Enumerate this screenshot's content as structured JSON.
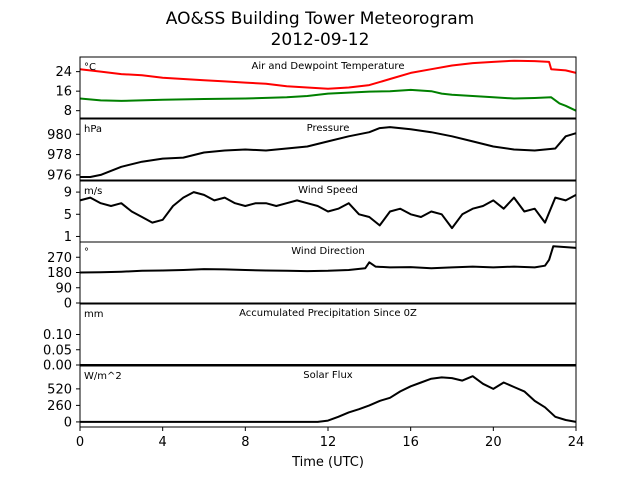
{
  "title_line1": "AO&SS Building Tower Meteorogram",
  "title_line2": "2012-09-12",
  "xlabel": "Time (UTC)",
  "x_ticks": [
    0,
    4,
    8,
    12,
    16,
    20,
    24
  ],
  "colors": {
    "temperature": "#ff0000",
    "dewpoint": "#008000",
    "default": "#000000"
  },
  "chart_data": [
    {
      "type": "line",
      "title": "Air and Dewpoint Temperature",
      "unit": "°C",
      "xlim": [
        0,
        24
      ],
      "ylim": [
        5,
        30
      ],
      "yticks": [
        8,
        16,
        24
      ],
      "series": [
        {
          "key": "temperature",
          "x": [
            0,
            1,
            2,
            3,
            4,
            5,
            6,
            7,
            8,
            9,
            10,
            11,
            12,
            13,
            14,
            15,
            16,
            17,
            18,
            19,
            20,
            21,
            22,
            22.7,
            22.8,
            23.5,
            24
          ],
          "values": [
            25,
            24,
            23,
            22.5,
            21.5,
            21,
            20.5,
            20,
            19.5,
            19,
            18,
            17.5,
            17,
            17.5,
            18.5,
            21,
            23.5,
            25,
            26.5,
            27.5,
            28,
            28.5,
            28.3,
            28,
            25,
            24.5,
            23.5
          ]
        },
        {
          "key": "dewpoint",
          "x": [
            0,
            1,
            2,
            4,
            6,
            8,
            10,
            11,
            12,
            14,
            15,
            16,
            17,
            17.5,
            18,
            19,
            20,
            21,
            22,
            22.8,
            23.2,
            23.5,
            24
          ],
          "values": [
            13,
            12.2,
            12,
            12.5,
            12.8,
            13,
            13.5,
            14,
            15,
            15.8,
            16,
            16.5,
            16,
            15,
            14.5,
            14,
            13.5,
            13,
            13.2,
            13.5,
            11,
            10,
            8
          ]
        }
      ]
    },
    {
      "type": "line",
      "title": "Pressure",
      "unit": "hPa",
      "xlim": [
        0,
        24
      ],
      "ylim": [
        975.5,
        981.5
      ],
      "yticks": [
        976,
        978,
        980
      ],
      "series": [
        {
          "key": "default",
          "x": [
            0,
            0.5,
            1,
            2,
            3,
            4,
            5,
            6,
            7,
            8,
            9,
            10,
            11,
            12,
            13,
            14,
            14.5,
            15,
            16,
            17,
            18,
            19,
            20,
            21,
            22,
            23,
            23.5,
            24
          ],
          "values": [
            975.8,
            975.8,
            976,
            976.8,
            977.3,
            977.6,
            977.7,
            978.2,
            978.4,
            978.5,
            978.4,
            978.6,
            978.8,
            979.3,
            979.8,
            980.2,
            980.6,
            980.7,
            980.5,
            980.2,
            979.8,
            979.3,
            978.8,
            978.5,
            978.4,
            978.6,
            979.8,
            980.1
          ]
        }
      ]
    },
    {
      "type": "line",
      "title": "Wind Speed",
      "unit": "m/s",
      "xlim": [
        0,
        24
      ],
      "ylim": [
        0,
        11
      ],
      "yticks": [
        1,
        5,
        9
      ],
      "series": [
        {
          "key": "default",
          "x": [
            0,
            0.5,
            1,
            1.5,
            2,
            2.5,
            3,
            3.5,
            4,
            4.5,
            5,
            5.5,
            6,
            6.5,
            7,
            7.5,
            8,
            8.5,
            9,
            9.5,
            10,
            10.5,
            11,
            11.5,
            12,
            12.5,
            13,
            13.5,
            14,
            14.5,
            15,
            15.5,
            16,
            16.5,
            17,
            17.5,
            18,
            18.5,
            19,
            19.5,
            20,
            20.5,
            21,
            21.5,
            22,
            22.5,
            23,
            23.5,
            24
          ],
          "values": [
            7.5,
            8,
            7,
            6.5,
            7,
            5.5,
            4.5,
            3.5,
            4,
            6.5,
            8,
            9,
            8.5,
            7.5,
            8,
            7,
            6.5,
            7,
            7,
            6.5,
            7,
            7.5,
            7,
            6.5,
            5.5,
            6,
            7,
            5,
            4.5,
            3,
            5.5,
            6,
            5,
            4.5,
            5.5,
            5,
            2.5,
            5,
            6,
            6.5,
            7.5,
            6,
            8,
            5.5,
            6,
            3.5,
            8,
            7.5,
            8.5
          ]
        }
      ]
    },
    {
      "type": "line",
      "title": "Wind Direction",
      "unit": "°",
      "xlim": [
        0,
        24
      ],
      "ylim": [
        0,
        360
      ],
      "yticks": [
        0,
        90,
        180,
        270
      ],
      "series": [
        {
          "key": "default",
          "x": [
            0,
            1,
            2,
            3,
            4,
            5,
            6,
            7,
            8,
            9,
            10,
            11,
            12,
            13,
            13.8,
            14,
            14.3,
            15,
            16,
            17,
            18,
            19,
            20,
            21,
            22,
            22.5,
            22.7,
            22.9,
            23.5,
            24
          ],
          "values": [
            180,
            182,
            185,
            190,
            192,
            195,
            200,
            198,
            195,
            192,
            190,
            188,
            190,
            195,
            205,
            240,
            215,
            210,
            212,
            205,
            210,
            215,
            210,
            215,
            210,
            220,
            255,
            335,
            330,
            325
          ]
        }
      ]
    },
    {
      "type": "line",
      "title": "Accumulated Precipitation Since 0Z",
      "unit": "mm",
      "xlim": [
        0,
        24
      ],
      "ylim": [
        0,
        0.2
      ],
      "yticks": [
        0.0,
        0.05,
        0.1
      ],
      "ytick_labels": [
        "0.00",
        "0.05",
        "0.10"
      ],
      "series": [
        {
          "key": "default",
          "x": [
            0,
            24
          ],
          "values": [
            0,
            0
          ]
        }
      ]
    },
    {
      "type": "line",
      "title": "Solar Flux",
      "unit": "W/m^2",
      "xlim": [
        0,
        24
      ],
      "ylim": [
        -80,
        880
      ],
      "yticks": [
        0,
        260,
        520
      ],
      "series": [
        {
          "key": "default",
          "x": [
            0,
            11.5,
            12,
            12.5,
            13,
            13.5,
            14,
            14.5,
            15,
            15.5,
            16,
            16.5,
            17,
            17.5,
            18,
            18.5,
            19,
            19.5,
            20,
            20.5,
            21,
            21.5,
            22,
            22.5,
            23,
            23.5,
            24
          ],
          "values": [
            0,
            0,
            20,
            80,
            150,
            200,
            260,
            330,
            380,
            480,
            560,
            620,
            680,
            700,
            690,
            650,
            720,
            600,
            520,
            620,
            550,
            480,
            330,
            230,
            80,
            30,
            0
          ]
        }
      ]
    }
  ]
}
